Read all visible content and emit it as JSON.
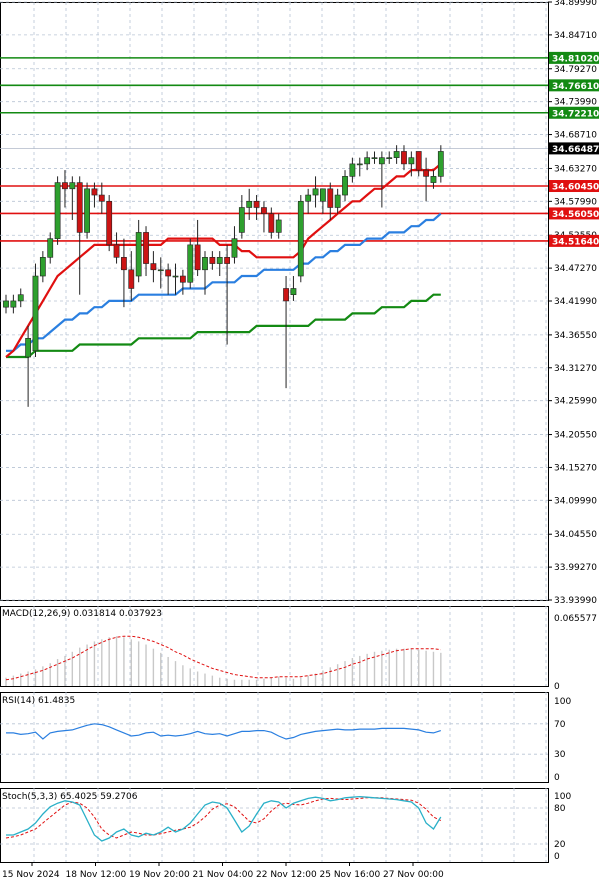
{
  "chart_data": [
    {
      "type": "candlestick",
      "panel": "price",
      "ylim": [
        33.9399,
        34.8999
      ],
      "y_ticks": [
        "34.89990",
        "34.84710",
        "34.79270",
        "34.73990",
        "34.68710",
        "34.63270",
        "34.57990",
        "34.52550",
        "34.47270",
        "34.41990",
        "34.36550",
        "34.31270",
        "34.25990",
        "34.20550",
        "34.15270",
        "34.09990",
        "34.04550",
        "33.99270",
        "33.93990"
      ],
      "current_price": {
        "value": 34.66487,
        "label": "34.66487"
      },
      "horizontal_levels": [
        {
          "value": 34.8102,
          "label": "34.81020",
          "color": "#138a13"
        },
        {
          "value": 34.7661,
          "label": "34.76610",
          "color": "#138a13"
        },
        {
          "value": 34.7221,
          "label": "34.72210",
          "color": "#138a13"
        },
        {
          "value": 34.6045,
          "label": "34.60450",
          "color": "#e01010"
        },
        {
          "value": 34.5605,
          "label": "34.56050",
          "color": "#e01010"
        },
        {
          "value": 34.5164,
          "label": "34.51640",
          "color": "#e01010"
        }
      ],
      "candles": [
        {
          "o": 34.41,
          "h": 34.43,
          "l": 34.4,
          "c": 34.42
        },
        {
          "o": 34.41,
          "h": 34.43,
          "l": 34.4,
          "c": 34.42
        },
        {
          "o": 34.42,
          "h": 34.44,
          "l": 34.41,
          "c": 34.43
        },
        {
          "o": 34.33,
          "h": 34.38,
          "l": 34.25,
          "c": 34.36
        },
        {
          "o": 34.34,
          "h": 34.48,
          "l": 34.33,
          "c": 34.46
        },
        {
          "o": 34.46,
          "h": 34.5,
          "l": 34.45,
          "c": 34.49
        },
        {
          "o": 34.49,
          "h": 34.53,
          "l": 34.48,
          "c": 34.52
        },
        {
          "o": 34.52,
          "h": 34.62,
          "l": 34.51,
          "c": 34.61
        },
        {
          "o": 34.61,
          "h": 34.63,
          "l": 34.57,
          "c": 34.6
        },
        {
          "o": 34.6,
          "h": 34.62,
          "l": 34.55,
          "c": 34.61
        },
        {
          "o": 34.61,
          "h": 34.62,
          "l": 34.43,
          "c": 34.53
        },
        {
          "o": 34.53,
          "h": 34.61,
          "l": 34.52,
          "c": 34.6
        },
        {
          "o": 34.6,
          "h": 34.61,
          "l": 34.57,
          "c": 34.59
        },
        {
          "o": 34.59,
          "h": 34.61,
          "l": 34.56,
          "c": 34.58
        },
        {
          "o": 34.58,
          "h": 34.59,
          "l": 34.5,
          "c": 34.51
        },
        {
          "o": 34.51,
          "h": 34.53,
          "l": 34.48,
          "c": 34.49
        },
        {
          "o": 34.49,
          "h": 34.52,
          "l": 34.41,
          "c": 34.47
        },
        {
          "o": 34.47,
          "h": 34.5,
          "l": 34.42,
          "c": 34.44
        },
        {
          "o": 34.46,
          "h": 34.55,
          "l": 34.45,
          "c": 34.53
        },
        {
          "o": 34.53,
          "h": 34.54,
          "l": 34.46,
          "c": 34.48
        },
        {
          "o": 34.48,
          "h": 34.5,
          "l": 34.45,
          "c": 34.47
        },
        {
          "o": 34.47,
          "h": 34.49,
          "l": 34.44,
          "c": 34.47
        },
        {
          "o": 34.47,
          "h": 34.48,
          "l": 34.43,
          "c": 34.46
        },
        {
          "o": 34.46,
          "h": 34.48,
          "l": 34.43,
          "c": 34.46
        },
        {
          "o": 34.46,
          "h": 34.47,
          "l": 34.43,
          "c": 34.45
        },
        {
          "o": 34.45,
          "h": 34.52,
          "l": 34.44,
          "c": 34.51
        },
        {
          "o": 34.51,
          "h": 34.55,
          "l": 34.46,
          "c": 34.47
        },
        {
          "o": 34.47,
          "h": 34.5,
          "l": 34.43,
          "c": 34.49
        },
        {
          "o": 34.49,
          "h": 34.5,
          "l": 34.47,
          "c": 34.48
        },
        {
          "o": 34.48,
          "h": 34.5,
          "l": 34.46,
          "c": 34.49
        },
        {
          "o": 34.49,
          "h": 34.51,
          "l": 34.35,
          "c": 34.48
        },
        {
          "o": 34.49,
          "h": 34.54,
          "l": 34.48,
          "c": 34.52
        },
        {
          "o": 34.53,
          "h": 34.59,
          "l": 34.52,
          "c": 34.57
        },
        {
          "o": 34.57,
          "h": 34.6,
          "l": 34.55,
          "c": 34.58
        },
        {
          "o": 34.58,
          "h": 34.59,
          "l": 34.55,
          "c": 34.57
        },
        {
          "o": 34.57,
          "h": 34.58,
          "l": 34.53,
          "c": 34.56
        },
        {
          "o": 34.56,
          "h": 34.57,
          "l": 34.52,
          "c": 34.53
        },
        {
          "o": 34.53,
          "h": 34.56,
          "l": 34.52,
          "c": 34.55
        },
        {
          "o": 34.44,
          "h": 34.46,
          "l": 34.28,
          "c": 34.42
        },
        {
          "o": 34.43,
          "h": 34.46,
          "l": 34.42,
          "c": 34.44
        },
        {
          "o": 34.46,
          "h": 34.59,
          "l": 34.45,
          "c": 34.58
        },
        {
          "o": 34.58,
          "h": 34.6,
          "l": 34.56,
          "c": 34.59
        },
        {
          "o": 34.59,
          "h": 34.62,
          "l": 34.57,
          "c": 34.6
        },
        {
          "o": 34.58,
          "h": 34.6,
          "l": 34.56,
          "c": 34.6
        },
        {
          "o": 34.6,
          "h": 34.61,
          "l": 34.55,
          "c": 34.57
        },
        {
          "o": 34.57,
          "h": 34.6,
          "l": 34.56,
          "c": 34.59
        },
        {
          "o": 34.59,
          "h": 34.63,
          "l": 34.58,
          "c": 34.62
        },
        {
          "o": 34.62,
          "h": 34.65,
          "l": 34.61,
          "c": 34.64
        },
        {
          "o": 34.64,
          "h": 34.65,
          "l": 34.62,
          "c": 34.64
        },
        {
          "o": 34.64,
          "h": 34.66,
          "l": 34.63,
          "c": 34.65
        },
        {
          "o": 34.65,
          "h": 34.66,
          "l": 34.64,
          "c": 34.65
        },
        {
          "o": 34.64,
          "h": 34.66,
          "l": 34.57,
          "c": 34.65
        },
        {
          "o": 34.65,
          "h": 34.66,
          "l": 34.64,
          "c": 34.65
        },
        {
          "o": 34.65,
          "h": 34.67,
          "l": 34.64,
          "c": 34.66
        },
        {
          "o": 34.66,
          "h": 34.67,
          "l": 34.63,
          "c": 34.64
        },
        {
          "o": 34.64,
          "h": 34.66,
          "l": 34.62,
          "c": 34.65
        },
        {
          "o": 34.66,
          "h": 34.66,
          "l": 34.62,
          "c": 34.63
        },
        {
          "o": 34.63,
          "h": 34.65,
          "l": 34.58,
          "c": 34.62
        },
        {
          "o": 34.61,
          "h": 34.63,
          "l": 34.6,
          "c": 34.62
        },
        {
          "o": 34.62,
          "h": 34.67,
          "l": 34.61,
          "c": 34.66
        }
      ],
      "ma_red": [
        34.33,
        34.34,
        34.36,
        34.38,
        34.4,
        34.42,
        34.44,
        34.46,
        34.47,
        34.48,
        34.49,
        34.5,
        34.51,
        34.51,
        34.51,
        34.51,
        34.51,
        34.51,
        34.51,
        34.51,
        34.51,
        34.51,
        34.52,
        34.52,
        34.52,
        34.52,
        34.52,
        34.52,
        34.52,
        34.51,
        34.51,
        34.51,
        34.5,
        34.5,
        34.49,
        34.49,
        34.49,
        34.49,
        34.49,
        34.49,
        34.5,
        34.52,
        34.53,
        34.54,
        34.55,
        34.56,
        34.57,
        34.58,
        34.58,
        34.59,
        34.6,
        34.6,
        34.61,
        34.62,
        34.62,
        34.63,
        34.63,
        34.63,
        34.63,
        34.64
      ],
      "ma_blue": [
        34.34,
        34.34,
        34.35,
        34.35,
        34.36,
        34.36,
        34.37,
        34.38,
        34.39,
        34.39,
        34.4,
        34.4,
        34.41,
        34.41,
        34.42,
        34.42,
        34.42,
        34.42,
        34.43,
        34.43,
        34.43,
        34.43,
        34.43,
        34.43,
        34.44,
        34.44,
        34.44,
        34.44,
        34.45,
        34.45,
        34.45,
        34.45,
        34.46,
        34.46,
        34.46,
        34.47,
        34.47,
        34.47,
        34.47,
        34.47,
        34.48,
        34.48,
        34.49,
        34.49,
        34.5,
        34.5,
        34.51,
        34.51,
        34.51,
        34.52,
        34.52,
        34.52,
        34.53,
        34.53,
        34.53,
        34.54,
        34.54,
        34.55,
        34.55,
        34.56
      ],
      "ma_green": [
        34.33,
        34.33,
        34.33,
        34.33,
        34.34,
        34.34,
        34.34,
        34.34,
        34.34,
        34.34,
        34.35,
        34.35,
        34.35,
        34.35,
        34.35,
        34.35,
        34.35,
        34.35,
        34.36,
        34.36,
        34.36,
        34.36,
        34.36,
        34.36,
        34.36,
        34.36,
        34.37,
        34.37,
        34.37,
        34.37,
        34.37,
        34.37,
        34.37,
        34.37,
        34.38,
        34.38,
        34.38,
        34.38,
        34.38,
        34.38,
        34.38,
        34.38,
        34.39,
        34.39,
        34.39,
        34.39,
        34.39,
        34.4,
        34.4,
        34.4,
        34.4,
        34.41,
        34.41,
        34.41,
        34.41,
        34.42,
        34.42,
        34.42,
        34.43,
        34.43
      ]
    },
    {
      "type": "bar",
      "panel": "macd",
      "title": "MACD(12,26,9) 0.031814 0.037923",
      "ylim": [
        0,
        0.065577
      ],
      "y_ticks": [
        "0.065577",
        "0"
      ],
      "histogram": [
        0.008,
        0.01,
        0.012,
        0.014,
        0.016,
        0.019,
        0.022,
        0.026,
        0.029,
        0.033,
        0.037,
        0.04,
        0.043,
        0.045,
        0.047,
        0.048,
        0.047,
        0.045,
        0.043,
        0.04,
        0.036,
        0.032,
        0.028,
        0.024,
        0.02,
        0.017,
        0.014,
        0.012,
        0.01,
        0.008,
        0.007,
        0.006,
        0.006,
        0.006,
        0.006,
        0.007,
        0.008,
        0.009,
        0.008,
        0.007,
        0.008,
        0.01,
        0.012,
        0.015,
        0.018,
        0.021,
        0.024,
        0.027,
        0.029,
        0.031,
        0.033,
        0.034,
        0.035,
        0.036,
        0.036,
        0.036,
        0.035,
        0.034,
        0.033,
        0.032
      ],
      "signal": [
        0.006,
        0.007,
        0.009,
        0.011,
        0.013,
        0.015,
        0.018,
        0.021,
        0.024,
        0.027,
        0.031,
        0.035,
        0.039,
        0.042,
        0.045,
        0.047,
        0.048,
        0.048,
        0.047,
        0.045,
        0.043,
        0.04,
        0.037,
        0.033,
        0.03,
        0.026,
        0.023,
        0.02,
        0.017,
        0.015,
        0.013,
        0.011,
        0.01,
        0.009,
        0.008,
        0.008,
        0.008,
        0.009,
        0.009,
        0.009,
        0.009,
        0.01,
        0.011,
        0.012,
        0.014,
        0.016,
        0.018,
        0.021,
        0.023,
        0.026,
        0.028,
        0.03,
        0.032,
        0.034,
        0.035,
        0.036,
        0.036,
        0.036,
        0.036,
        0.035
      ]
    },
    {
      "type": "line",
      "panel": "rsi",
      "title": "RSI(14) 61.4835",
      "ylim": [
        0,
        100
      ],
      "y_ticks": [
        "100",
        "70",
        "30",
        "0"
      ],
      "values": [
        58,
        58,
        56,
        57,
        59,
        50,
        58,
        60,
        61,
        62,
        65,
        68,
        70,
        69,
        66,
        62,
        58,
        54,
        55,
        58,
        59,
        54,
        55,
        54,
        55,
        57,
        60,
        57,
        56,
        57,
        54,
        57,
        60,
        60,
        61,
        61,
        59,
        54,
        50,
        52,
        56,
        58,
        60,
        61,
        62,
        63,
        62,
        62,
        63,
        63,
        63,
        64,
        64,
        64,
        64,
        63,
        62,
        59,
        58,
        61
      ]
    },
    {
      "type": "line",
      "panel": "stoch",
      "title": "Stoch(5,3,3) 65.4025 59.2706",
      "ylim": [
        0,
        100
      ],
      "y_ticks": [
        "100",
        "80",
        "20",
        "0"
      ],
      "k": [
        35,
        35,
        40,
        45,
        55,
        70,
        82,
        88,
        92,
        90,
        85,
        60,
        35,
        25,
        30,
        40,
        45,
        35,
        32,
        38,
        35,
        40,
        48,
        40,
        45,
        55,
        70,
        85,
        90,
        88,
        80,
        60,
        40,
        50,
        70,
        88,
        92,
        90,
        80,
        88,
        92,
        96,
        98,
        96,
        92,
        94,
        97,
        98,
        99,
        98,
        97,
        96,
        95,
        94,
        92,
        90,
        80,
        55,
        45,
        65
      ],
      "d": [
        30,
        32,
        35,
        40,
        45,
        55,
        65,
        75,
        85,
        90,
        88,
        80,
        65,
        45,
        35,
        30,
        35,
        40,
        38,
        35,
        35,
        37,
        40,
        43,
        45,
        48,
        55,
        65,
        78,
        85,
        87,
        82,
        70,
        58,
        55,
        62,
        75,
        85,
        88,
        86,
        85,
        88,
        92,
        95,
        96,
        95,
        94,
        95,
        96,
        97,
        97,
        97,
        96,
        95,
        94,
        93,
        88,
        78,
        65,
        59
      ]
    }
  ],
  "x_axis": {
    "labels": [
      "15 Nov 2024",
      "18 Nov 12:00",
      "19 Nov 20:00",
      "21 Nov 04:00",
      "22 Nov 12:00",
      "25 Nov 16:00",
      "27 Nov 00:00"
    ]
  },
  "colors": {
    "up": "#2ea02e",
    "down": "#cc1414",
    "ma_red": "#e01010",
    "ma_blue": "#2a7fe0",
    "ma_green": "#138a13",
    "grid": "#b8c4d4",
    "macd_hist": "#c8c8c8",
    "macd_signal": "#e01010",
    "rsi": "#2a7fe0",
    "stoch_k": "#2ab0c8",
    "stoch_d": "#e01010",
    "price_tag": "#000000"
  }
}
